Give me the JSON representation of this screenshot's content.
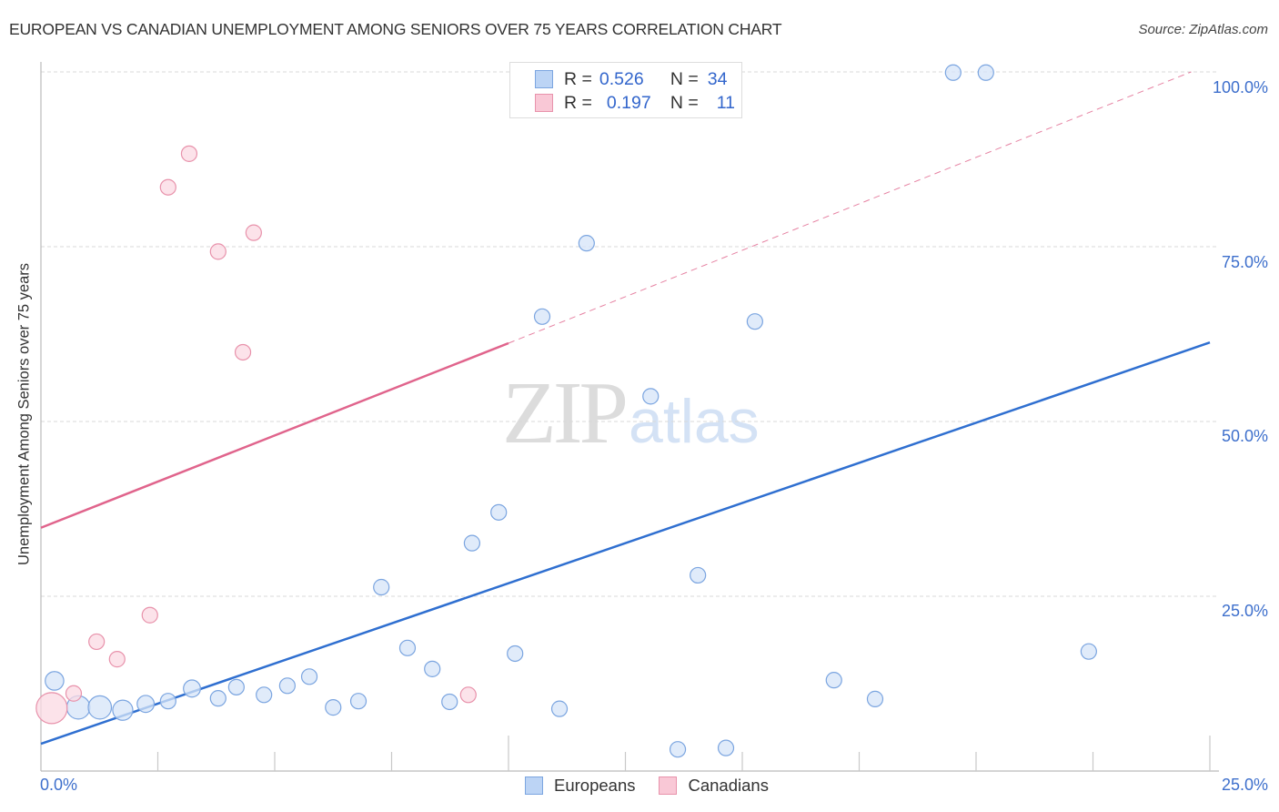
{
  "header": {
    "title": "EUROPEAN VS CANADIAN UNEMPLOYMENT AMONG SENIORS OVER 75 YEARS CORRELATION CHART",
    "source": "Source: ZipAtlas.com"
  },
  "legend_top": {
    "rows": [
      {
        "series": "Europeans",
        "r_label": "R =",
        "r_value": "0.526",
        "n_label": "N =",
        "n_value": "34",
        "color": "#bcd4f5"
      },
      {
        "series": "Canadians",
        "r_label": "R =",
        "r_value": "0.197",
        "n_label": "N =",
        "n_value": "11",
        "color": "#f9c8d6"
      }
    ]
  },
  "legend_bottom": {
    "items": [
      {
        "label": "Europeans",
        "color": "#bcd4f5"
      },
      {
        "label": "Canadians",
        "color": "#f9c8d6"
      }
    ]
  },
  "axes": {
    "ylabel": "Unemployment Among Seniors over 75 years",
    "y_ticks": [
      "100.0%",
      "75.0%",
      "50.0%",
      "25.0%"
    ],
    "x_tick_left": "0.0%",
    "x_tick_right": "25.0%"
  },
  "watermark": {
    "zip": "ZIP",
    "atlas": "atlas"
  },
  "chart_data": {
    "type": "scatter",
    "title": "EUROPEAN VS CANADIAN UNEMPLOYMENT AMONG SENIORS OVER 75 YEARS CORRELATION CHART",
    "xlabel": "",
    "ylabel": "Unemployment Among Seniors over 75 years",
    "xlim": [
      0,
      25
    ],
    "ylim": [
      0,
      100
    ],
    "x_unit": "%",
    "y_unit": "%",
    "grid": {
      "y": true,
      "x": false,
      "style": "dashed"
    },
    "legend_position": "bottom-center",
    "series": [
      {
        "name": "Europeans",
        "color": "#7ba5e0",
        "fill": "#d6e4f8",
        "R": 0.526,
        "N": 34,
        "points": [
          {
            "x": 0.29,
            "y": 12.9,
            "size": 1.2
          },
          {
            "x": 0.8,
            "y": 9.1,
            "size": 1.5
          },
          {
            "x": 1.26,
            "y": 9.1,
            "size": 1.5
          },
          {
            "x": 1.75,
            "y": 8.7,
            "size": 1.3
          },
          {
            "x": 2.24,
            "y": 9.6,
            "size": 1.1
          },
          {
            "x": 2.72,
            "y": 10.0,
            "size": 1.0
          },
          {
            "x": 3.23,
            "y": 11.8,
            "size": 1.1
          },
          {
            "x": 3.79,
            "y": 10.4,
            "size": 1.0
          },
          {
            "x": 4.18,
            "y": 12.0,
            "size": 1.0
          },
          {
            "x": 4.77,
            "y": 10.9,
            "size": 1.0
          },
          {
            "x": 5.27,
            "y": 12.2,
            "size": 1.0
          },
          {
            "x": 5.74,
            "y": 13.5,
            "size": 1.0
          },
          {
            "x": 6.25,
            "y": 9.1,
            "size": 1.0
          },
          {
            "x": 6.79,
            "y": 10.0,
            "size": 1.0
          },
          {
            "x": 7.28,
            "y": 26.3,
            "size": 1.0
          },
          {
            "x": 7.84,
            "y": 17.6,
            "size": 1.0
          },
          {
            "x": 8.37,
            "y": 14.6,
            "size": 1.0
          },
          {
            "x": 8.74,
            "y": 9.9,
            "size": 1.0
          },
          {
            "x": 9.22,
            "y": 32.6,
            "size": 1.0
          },
          {
            "x": 9.79,
            "y": 37.0,
            "size": 1.0
          },
          {
            "x": 10.14,
            "y": 16.8,
            "size": 1.0
          },
          {
            "x": 10.72,
            "y": 65.0,
            "size": 1.0
          },
          {
            "x": 11.09,
            "y": 8.9,
            "size": 1.0
          },
          {
            "x": 11.67,
            "y": 75.5,
            "size": 1.0
          },
          {
            "x": 13.04,
            "y": 53.6,
            "size": 1.0
          },
          {
            "x": 13.62,
            "y": 3.1,
            "size": 1.0
          },
          {
            "x": 14.05,
            "y": 28.0,
            "size": 1.0
          },
          {
            "x": 14.65,
            "y": 3.3,
            "size": 1.0
          },
          {
            "x": 15.27,
            "y": 64.3,
            "size": 1.0
          },
          {
            "x": 16.96,
            "y": 13.0,
            "size": 1.0
          },
          {
            "x": 17.84,
            "y": 10.3,
            "size": 1.0
          },
          {
            "x": 19.51,
            "y": 99.9,
            "size": 1.0
          },
          {
            "x": 20.21,
            "y": 99.9,
            "size": 1.0
          },
          {
            "x": 22.41,
            "y": 17.1,
            "size": 1.0
          }
        ],
        "trendline": {
          "x0": 0,
          "y0": 3.9,
          "x1": 25,
          "y1": 61.3,
          "style": "solid",
          "color": "#2f6fd0"
        }
      },
      {
        "name": "Canadians",
        "color": "#e892ab",
        "fill": "#fbd9e3",
        "R": 0.197,
        "N": 11,
        "points": [
          {
            "x": 0.23,
            "y": 9.0,
            "size": 2.0
          },
          {
            "x": 0.7,
            "y": 11.1,
            "size": 1.0
          },
          {
            "x": 1.19,
            "y": 18.5,
            "size": 1.0
          },
          {
            "x": 1.63,
            "y": 16.0,
            "size": 1.0
          },
          {
            "x": 2.33,
            "y": 22.3,
            "size": 1.0
          },
          {
            "x": 2.72,
            "y": 83.5,
            "size": 1.0
          },
          {
            "x": 3.17,
            "y": 88.3,
            "size": 1.0
          },
          {
            "x": 3.79,
            "y": 74.3,
            "size": 1.0
          },
          {
            "x": 4.32,
            "y": 59.9,
            "size": 1.0
          },
          {
            "x": 4.55,
            "y": 77.0,
            "size": 1.0
          },
          {
            "x": 9.14,
            "y": 10.9,
            "size": 1.0
          }
        ],
        "trendline": {
          "x0": 0,
          "y0": 34.8,
          "x1": 10.0,
          "y1": 61.2,
          "style": "solid",
          "color": "#e0648c",
          "extension": {
            "x0": 10.0,
            "y0": 61.2,
            "x1": 24.6,
            "y1": 100.0,
            "style": "dashed"
          }
        }
      }
    ]
  }
}
